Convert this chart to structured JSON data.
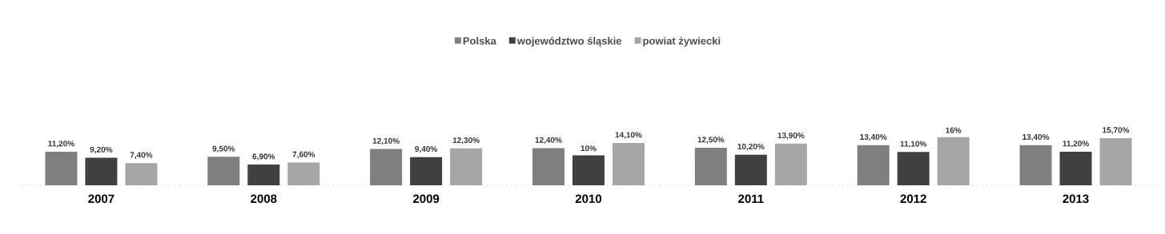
{
  "chart_data": {
    "type": "bar",
    "categories": [
      "2007",
      "2008",
      "2009",
      "2010",
      "2011",
      "2012",
      "2013"
    ],
    "series": [
      {
        "name": "Polska",
        "color": "#7f7f7f",
        "values": [
          11.2,
          9.5,
          12.1,
          12.4,
          12.5,
          13.4,
          13.4
        ],
        "value_labels": [
          "11,20%",
          "9,50%",
          "12,10%",
          "12,40%",
          "12,50%",
          "13,40%",
          "13,40%"
        ]
      },
      {
        "name": "województwo śląskie",
        "color": "#404040",
        "values": [
          9.2,
          6.9,
          9.4,
          10,
          10.2,
          11.1,
          11.2
        ],
        "value_labels": [
          "9,20%",
          "6,90%",
          "9,40%",
          "10%",
          "10,20%",
          "11,10%",
          "11,20%"
        ]
      },
      {
        "name": "powiat żywiecki",
        "color": "#a6a6a6",
        "values": [
          7.4,
          7.6,
          12.3,
          14.1,
          13.9,
          16,
          15.7
        ],
        "value_labels": [
          "7,40%",
          "7,60%",
          "12,30%",
          "14,10%",
          "13,90%",
          "16%",
          "15,70%"
        ]
      }
    ],
    "legend": "top",
    "grid": false
  }
}
